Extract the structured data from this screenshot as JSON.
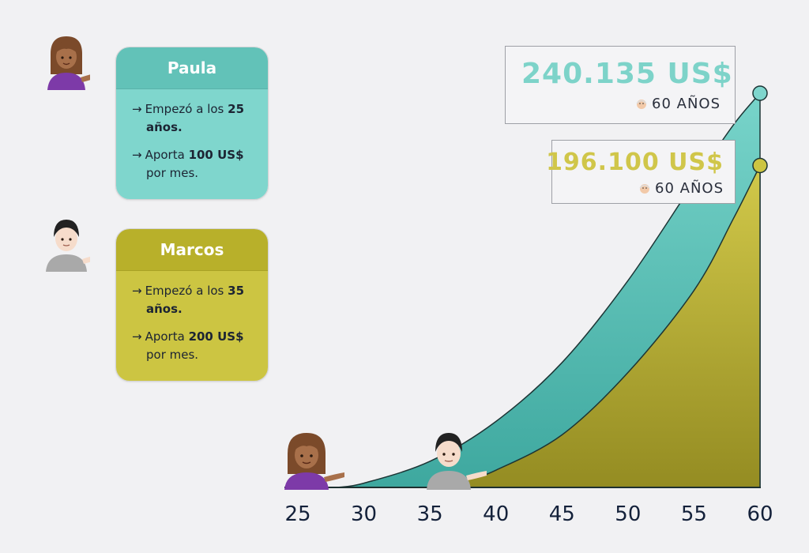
{
  "people": [
    {
      "name": "Paula",
      "line1_prefix": "Empezó a los",
      "line1_value": "25",
      "line1_suffix": "años.",
      "line2_prefix": "Aporta",
      "line2_value": "100 US$",
      "line2_suffix": "por mes.",
      "final_amount": "240.135 US$",
      "final_age": "60 AÑOS",
      "color": "#7fd6cd"
    },
    {
      "name": "Marcos",
      "line1_prefix": "Empezó a los",
      "line1_value": "35",
      "line1_suffix": "años.",
      "line2_prefix": "Aporta",
      "line2_value": "200 US$",
      "line2_suffix": "por mes.",
      "final_amount": "196.100 US$",
      "final_age": "60 AÑOS",
      "color": "#ccc542"
    }
  ],
  "chart_data": {
    "type": "area",
    "x_ticks": [
      25,
      30,
      35,
      40,
      45,
      50,
      55,
      60
    ],
    "xlim": [
      25,
      60
    ],
    "ylim": [
      0,
      240135
    ],
    "series": [
      {
        "name": "Paula",
        "color": "#5cc4ba",
        "x": [
          28,
          30,
          35,
          40,
          45,
          50,
          55,
          58,
          60
        ],
        "y": [
          0,
          2590,
          15900,
          40200,
          76000,
          126000,
          186000,
          221000,
          240135
        ]
      },
      {
        "name": "Marcos",
        "color": "#b3ab2c",
        "x": [
          35,
          38,
          40,
          45,
          50,
          55,
          58,
          60
        ],
        "y": [
          0,
          5400,
          10500,
          32000,
          70000,
          120000,
          164000,
          196100
        ]
      }
    ],
    "annotations": [
      {
        "label": "240.135 US$",
        "sub": "60 AÑOS"
      },
      {
        "label": "196.100 US$",
        "sub": "60 AÑOS"
      }
    ]
  }
}
